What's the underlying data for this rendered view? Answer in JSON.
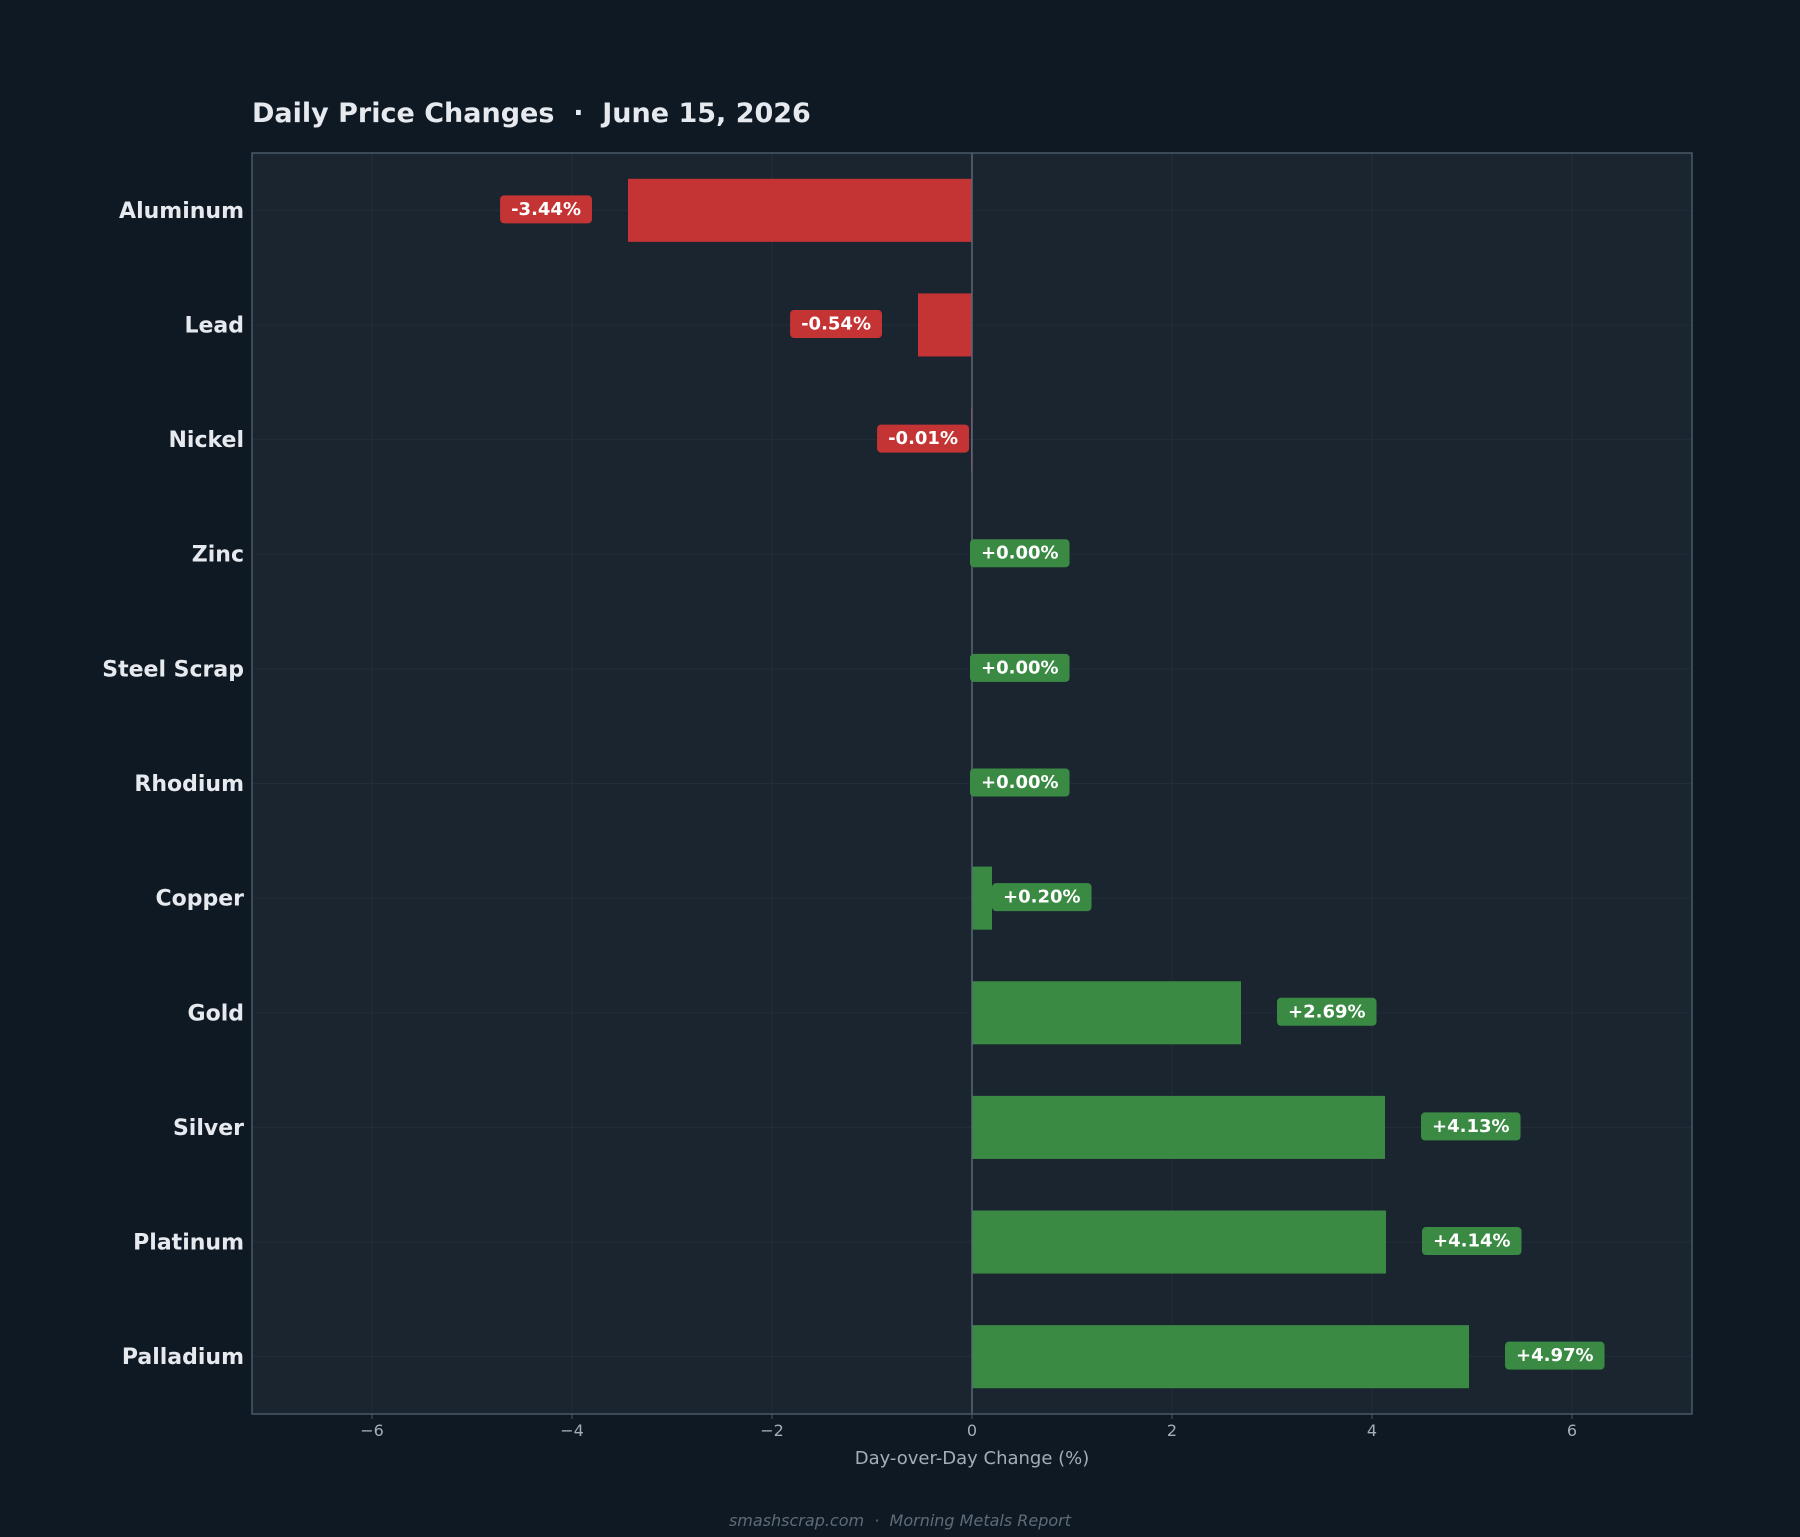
{
  "chart_data": {
    "type": "bar",
    "orientation": "horizontal",
    "title": "Daily Price Changes  ·  June 15, 2026",
    "xlabel": "Day-over-Day Change (%)",
    "ylabel": "",
    "xlim": [
      -7.2,
      7.2
    ],
    "xticks": [
      -6,
      -4,
      -2,
      0,
      2,
      4,
      6
    ],
    "xtick_labels": [
      "−6",
      "−4",
      "−2",
      "0",
      "2",
      "4",
      "6"
    ],
    "grid": true,
    "categories": [
      "Aluminum",
      "Lead",
      "Nickel",
      "Zinc",
      "Steel Scrap",
      "Rhodium",
      "Copper",
      "Gold",
      "Silver",
      "Platinum",
      "Palladium"
    ],
    "values": [
      -3.44,
      -0.54,
      -0.01,
      0.0,
      0.0,
      0.0,
      0.2,
      2.69,
      4.13,
      4.14,
      4.97
    ],
    "value_labels": [
      "-3.44%",
      "-0.54%",
      "-0.01%",
      "+0.00%",
      "+0.00%",
      "+0.00%",
      "+0.20%",
      "+2.69%",
      "+4.13%",
      "+4.14%",
      "+4.97%"
    ],
    "colors": {
      "negative": "#c53434",
      "positive": "#3a8a44"
    }
  },
  "footer": "smashscrap.com  ·  Morning Metals Report",
  "theme": {
    "background": "#0f1923",
    "plot_background": "#1b2530",
    "axis_color": "#4a5866",
    "grid_color": "#222d38",
    "text_color": "#e6e9ee",
    "muted_text": "#a5adb8"
  }
}
